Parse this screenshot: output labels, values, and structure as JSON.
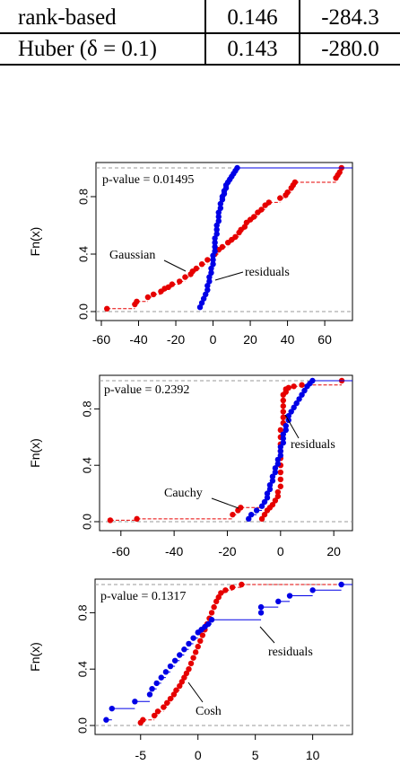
{
  "table": {
    "rows": [
      {
        "method": "rank-based",
        "v1": "0.146",
        "v2": "-284.3"
      },
      {
        "method": "Huber (δ = 0.1)",
        "v1": "0.143",
        "v2": "-280.0"
      }
    ]
  },
  "chart_data": [
    {
      "type": "scatter",
      "ylabel": "Fn(x)",
      "annotation_pvalue": "p-value = 0.01495",
      "series": [
        {
          "name": "Gaussian",
          "color": "#e60000",
          "x": [
            -57,
            -42,
            -41,
            -35,
            -32,
            -28,
            -26,
            -24,
            -22,
            -18,
            -15,
            -12,
            -11,
            -9,
            -6,
            -3,
            1,
            3,
            5,
            8,
            10,
            12,
            14,
            15,
            17,
            18,
            20,
            22,
            24,
            26,
            28,
            30,
            36,
            39,
            40,
            42,
            43,
            44,
            66,
            67,
            68,
            69
          ],
          "y": [
            0.02,
            0.05,
            0.07,
            0.1,
            0.12,
            0.14,
            0.16,
            0.17,
            0.19,
            0.21,
            0.24,
            0.26,
            0.28,
            0.3,
            0.33,
            0.36,
            0.4,
            0.43,
            0.45,
            0.48,
            0.5,
            0.52,
            0.55,
            0.57,
            0.59,
            0.62,
            0.64,
            0.66,
            0.69,
            0.71,
            0.74,
            0.76,
            0.79,
            0.81,
            0.83,
            0.86,
            0.88,
            0.9,
            0.93,
            0.95,
            0.97,
            1.0
          ]
        },
        {
          "name": "residuals",
          "color": "#0000e6",
          "x": [
            -7,
            -6,
            -5,
            -4,
            -3,
            -3,
            -2,
            -2,
            -1,
            -1,
            0,
            0,
            0,
            1,
            1,
            1,
            1,
            2,
            2,
            2,
            3,
            3,
            3,
            4,
            4,
            5,
            5,
            6,
            6,
            7,
            7,
            8,
            9,
            10,
            11,
            12,
            13
          ],
          "y": [
            0.03,
            0.06,
            0.09,
            0.12,
            0.15,
            0.18,
            0.21,
            0.24,
            0.27,
            0.3,
            0.33,
            0.36,
            0.39,
            0.42,
            0.45,
            0.48,
            0.51,
            0.54,
            0.57,
            0.6,
            0.63,
            0.66,
            0.69,
            0.72,
            0.75,
            0.78,
            0.8,
            0.82,
            0.84,
            0.86,
            0.88,
            0.9,
            0.92,
            0.94,
            0.96,
            0.98,
            1.0
          ]
        }
      ],
      "labels": {
        "gaussian": "Gaussian",
        "residuals": "residuals"
      },
      "xticks": [
        "-60",
        "-40",
        "-20",
        "0",
        "20",
        "40",
        "60"
      ],
      "yticks": [
        "0.0",
        "0.4",
        "0.8"
      ],
      "xlim": [
        -60,
        72
      ],
      "ylim": [
        0,
        1
      ]
    },
    {
      "type": "scatter",
      "ylabel": "Fn(x)",
      "annotation_pvalue": "p-value = 0.2392",
      "series": [
        {
          "name": "Cauchy",
          "color": "#e60000",
          "x": [
            -64,
            -54,
            -18,
            -16,
            -15,
            -7,
            -6,
            -5,
            -4,
            -3,
            -2,
            -1,
            -1,
            0,
            0,
            0,
            0,
            0,
            0,
            0,
            0,
            0,
            1,
            1,
            1,
            1,
            1,
            1,
            2,
            2,
            3,
            5,
            8,
            23
          ],
          "y": [
            0.01,
            0.02,
            0.05,
            0.08,
            0.1,
            0.02,
            0.05,
            0.08,
            0.1,
            0.12,
            0.15,
            0.18,
            0.21,
            0.25,
            0.3,
            0.35,
            0.4,
            0.45,
            0.5,
            0.55,
            0.6,
            0.65,
            0.7,
            0.74,
            0.78,
            0.82,
            0.86,
            0.9,
            0.92,
            0.94,
            0.95,
            0.96,
            0.97,
            1.0
          ]
        },
        {
          "name": "residuals",
          "color": "#0000e6",
          "x": [
            -12,
            -11,
            -9,
            -7,
            -6,
            -5,
            -5,
            -4,
            -4,
            -3,
            -3,
            -2,
            -2,
            -1,
            -1,
            0,
            0,
            0,
            1,
            1,
            1,
            2,
            2,
            3,
            3,
            4,
            5,
            6,
            7,
            8,
            9,
            10,
            11,
            12
          ],
          "y": [
            0.02,
            0.05,
            0.08,
            0.11,
            0.14,
            0.17,
            0.2,
            0.23,
            0.26,
            0.29,
            0.32,
            0.35,
            0.38,
            0.41,
            0.44,
            0.47,
            0.5,
            0.53,
            0.56,
            0.59,
            0.62,
            0.65,
            0.68,
            0.72,
            0.75,
            0.78,
            0.81,
            0.84,
            0.87,
            0.9,
            0.93,
            0.96,
            0.98,
            1.0
          ]
        }
      ],
      "labels": {
        "cauchy": "Cauchy",
        "residuals": "residuals"
      },
      "xticks": [
        "-60",
        "-40",
        "-20",
        "0",
        "20"
      ],
      "yticks": [
        "0.0",
        "0.4",
        "0.8"
      ],
      "xlim": [
        -66,
        25
      ],
      "ylim": [
        0,
        1
      ]
    },
    {
      "type": "scatter",
      "ylabel": "Fn(x)",
      "annotation_pvalue": "p-value = 0.1317",
      "series": [
        {
          "name": "Cosh",
          "color": "#e60000",
          "x": [
            -5,
            -4.8,
            -3.8,
            -3.5,
            -3,
            -2.7,
            -2.4,
            -2.1,
            -1.9,
            -1.6,
            -1.4,
            -1.2,
            -1,
            -0.8,
            -0.6,
            -0.4,
            -0.2,
            0,
            0.2,
            0.4,
            0.6,
            0.8,
            1,
            1.2,
            1.4,
            1.6,
            1.8,
            2,
            2.4,
            3,
            3.8
          ],
          "y": [
            0.02,
            0.04,
            0.07,
            0.1,
            0.13,
            0.16,
            0.19,
            0.22,
            0.25,
            0.28,
            0.31,
            0.34,
            0.37,
            0.4,
            0.44,
            0.48,
            0.52,
            0.56,
            0.6,
            0.64,
            0.68,
            0.72,
            0.76,
            0.8,
            0.84,
            0.88,
            0.91,
            0.94,
            0.96,
            0.98,
            1.0
          ]
        },
        {
          "name": "residuals",
          "color": "#0000e6",
          "x": [
            -8,
            -7.5,
            -5.5,
            -4.2,
            -4,
            -3.6,
            -3.2,
            -2.8,
            -2.4,
            -2,
            -1.6,
            -1.2,
            -0.8,
            -0.4,
            0,
            0.3,
            0.6,
            0.9,
            1.2,
            5.5,
            5.5,
            7,
            8,
            10,
            12.5
          ],
          "y": [
            0.04,
            0.12,
            0.17,
            0.22,
            0.26,
            0.3,
            0.34,
            0.38,
            0.42,
            0.46,
            0.5,
            0.54,
            0.58,
            0.62,
            0.66,
            0.68,
            0.7,
            0.72,
            0.75,
            0.8,
            0.84,
            0.88,
            0.92,
            0.96,
            1.0
          ]
        }
      ],
      "labels": {
        "cosh": "Cosh",
        "residuals": "residuals"
      },
      "xticks": [
        "-5",
        "0",
        "5",
        "10"
      ],
      "yticks": [
        "0.0",
        "0.4",
        "0.8"
      ],
      "xlim": [
        -8.5,
        13
      ],
      "ylim": [
        0,
        1
      ]
    }
  ]
}
